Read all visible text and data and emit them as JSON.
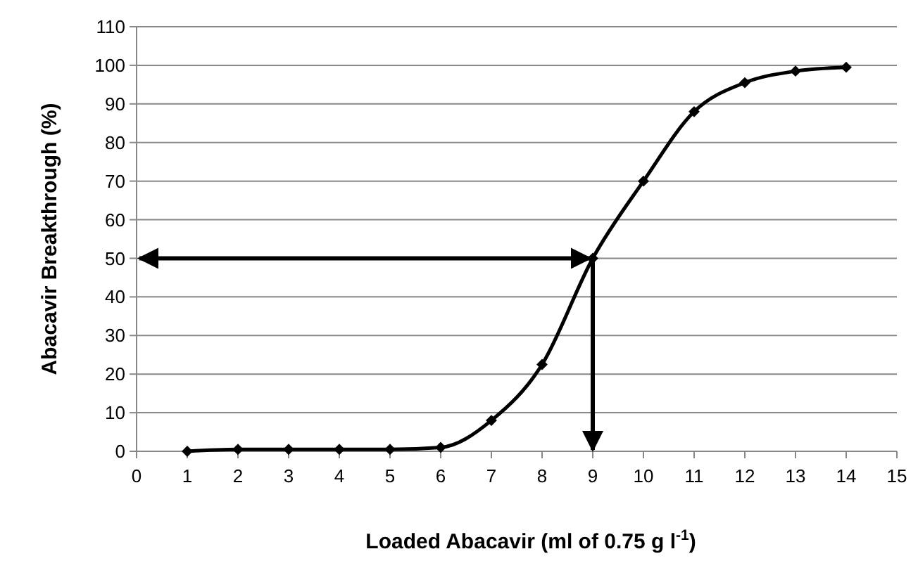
{
  "chart_data": {
    "type": "line",
    "xlabel": "Loaded Abacavir (ml of 0.75 g l$^{-1}$)",
    "ylabel": "Abacavir Breakthrough  (%)",
    "x": [
      1,
      2,
      3,
      4,
      5,
      6,
      7,
      8,
      9,
      10,
      11,
      12,
      13,
      14
    ],
    "series": [
      {
        "color": "#000000",
        "values": [
          0,
          0.5,
          0.5,
          0.5,
          0.5,
          1,
          8,
          22.5,
          50,
          70,
          88,
          95.5,
          98.5,
          99.5
        ]
      }
    ],
    "xlim": [
      0,
      15
    ],
    "xticks": [
      0,
      1,
      2,
      3,
      4,
      5,
      6,
      7,
      8,
      9,
      10,
      11,
      12,
      13,
      14,
      15
    ],
    "ylim": [
      0,
      110
    ],
    "yticks": [
      0,
      10,
      20,
      30,
      40,
      50,
      60,
      70,
      80,
      90,
      100,
      110
    ],
    "grid": "y",
    "marker": "diamond",
    "line_style": "solid",
    "ref_lines": [
      {
        "axis": "y",
        "value": 50,
        "color": "#000000"
      },
      {
        "axis": "x",
        "value": 9,
        "color": "#000000"
      }
    ]
  }
}
